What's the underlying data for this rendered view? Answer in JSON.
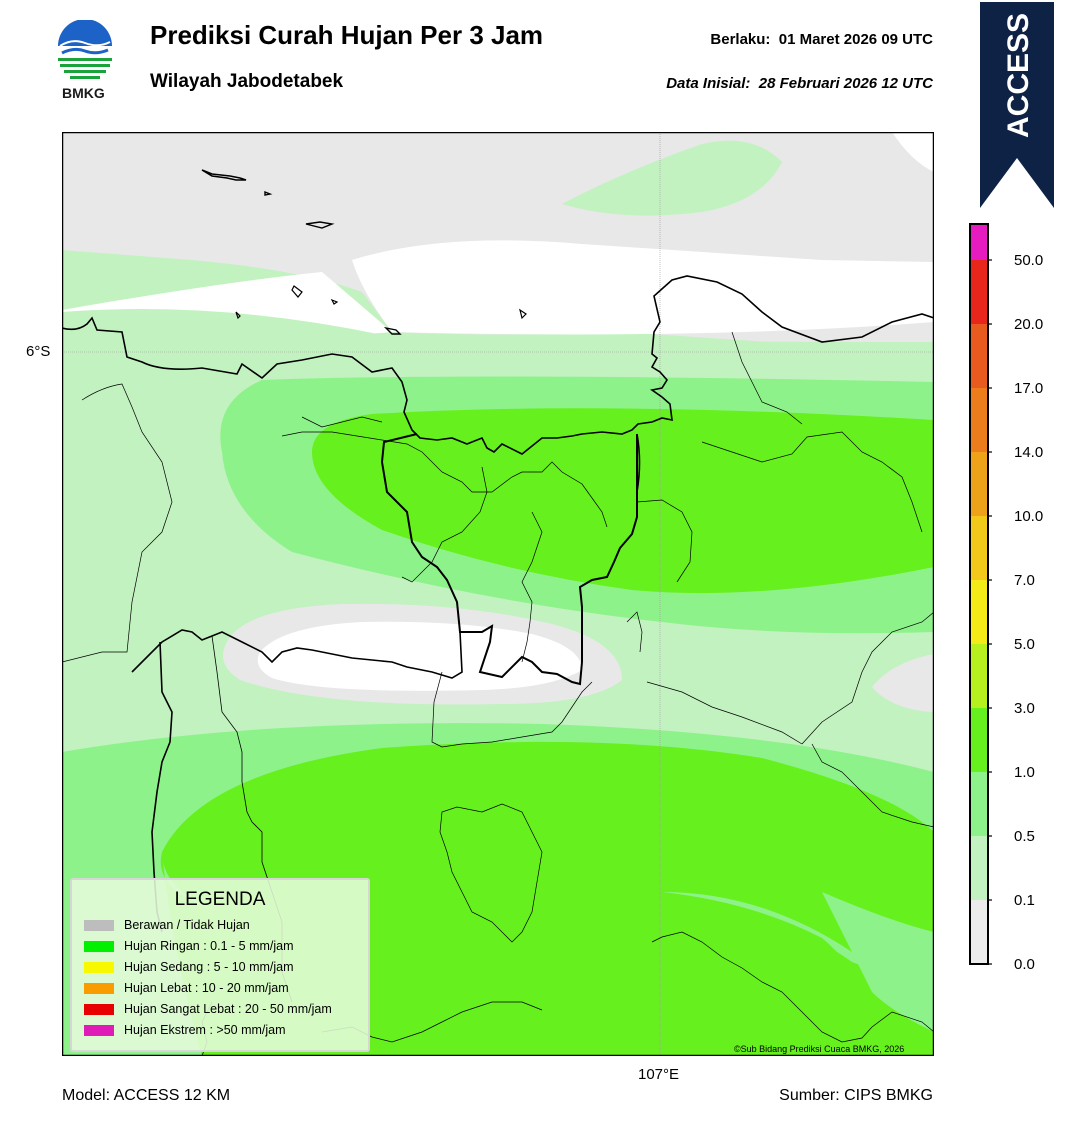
{
  "header": {
    "title": "Prediksi Curah Hujan Per 3 Jam",
    "subtitle": "Wilayah Jabodetabek",
    "valid_label": "Berlaku:  01 Maret 2026 09 UTC",
    "init_label": "Data Inisial:  28 Februari 2026 12 UTC",
    "logo_text": "BMKG"
  },
  "badge": {
    "text": "ACCESS",
    "color": "#0d2244"
  },
  "map": {
    "lat_label": "6°S",
    "lon_label": "107°E",
    "copyright": "©Sub Bidang Prediksi Cuaca BMKG, 2026"
  },
  "colorbar": {
    "labels": [
      "50.0",
      "20.0",
      "17.0",
      "14.0",
      "10.0",
      "7.0",
      "5.0",
      "3.0",
      "1.0",
      "0.5",
      "0.1",
      "0.0"
    ],
    "colors": [
      "#e61cc0",
      "#e8261c",
      "#e85a1e",
      "#ec7c1c",
      "#eea21a",
      "#f2c81a",
      "#f4ea18",
      "#eefc1a",
      "#b6f01e",
      "#66f01e",
      "#8ef28a",
      "#c2f2c0",
      "#ececec"
    ]
  },
  "legend": {
    "title": "LEGENDA",
    "items": [
      {
        "label": "Berawan / Tidak Hujan",
        "color": "#bdbdbd"
      },
      {
        "label": "Hujan Ringan : 0.1 - 5 mm/jam",
        "color": "#00f000"
      },
      {
        "label": "Hujan Sedang : 5 - 10 mm/jam",
        "color": "#f8f800"
      },
      {
        "label": "Hujan Lebat : 10 - 20 mm/jam",
        "color": "#f89c00"
      },
      {
        "label": "Hujan Sangat Lebat : 20 - 50 mm/jam",
        "color": "#e80000"
      },
      {
        "label": "Hujan Ekstrem : >50 mm/jam",
        "color": "#e01cb8"
      }
    ]
  },
  "footer": {
    "model": "Model: ACCESS 12 KM",
    "source": "Sumber: CIPS BMKG"
  }
}
